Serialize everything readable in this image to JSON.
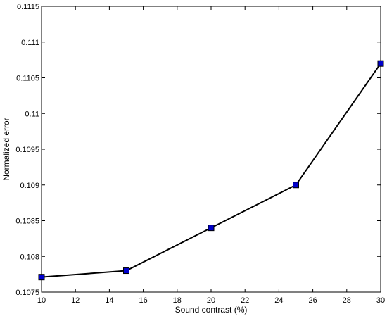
{
  "chart_data": {
    "type": "line",
    "title": "",
    "xlabel": "Sound contrast (%)",
    "ylabel": "Normalized error",
    "x": [
      10,
      15,
      20,
      25,
      30
    ],
    "series": [
      {
        "values": [
          0.10771,
          0.1078,
          0.1084,
          0.109,
          0.1107
        ],
        "line_color": "#000000",
        "marker": "square",
        "marker_color": "#0000cc"
      }
    ],
    "xlim": [
      10,
      30
    ],
    "ylim": [
      0.1075,
      0.1115
    ],
    "xticks": [
      "10",
      "12",
      "14",
      "16",
      "18",
      "20",
      "22",
      "24",
      "26",
      "28",
      "30"
    ],
    "yticks": [
      "0.1075",
      "0.108",
      "0.1085",
      "0.109",
      "0.1095",
      "0.11",
      "0.1105",
      "0.111",
      "0.1115"
    ],
    "grid": false,
    "legend": false
  }
}
